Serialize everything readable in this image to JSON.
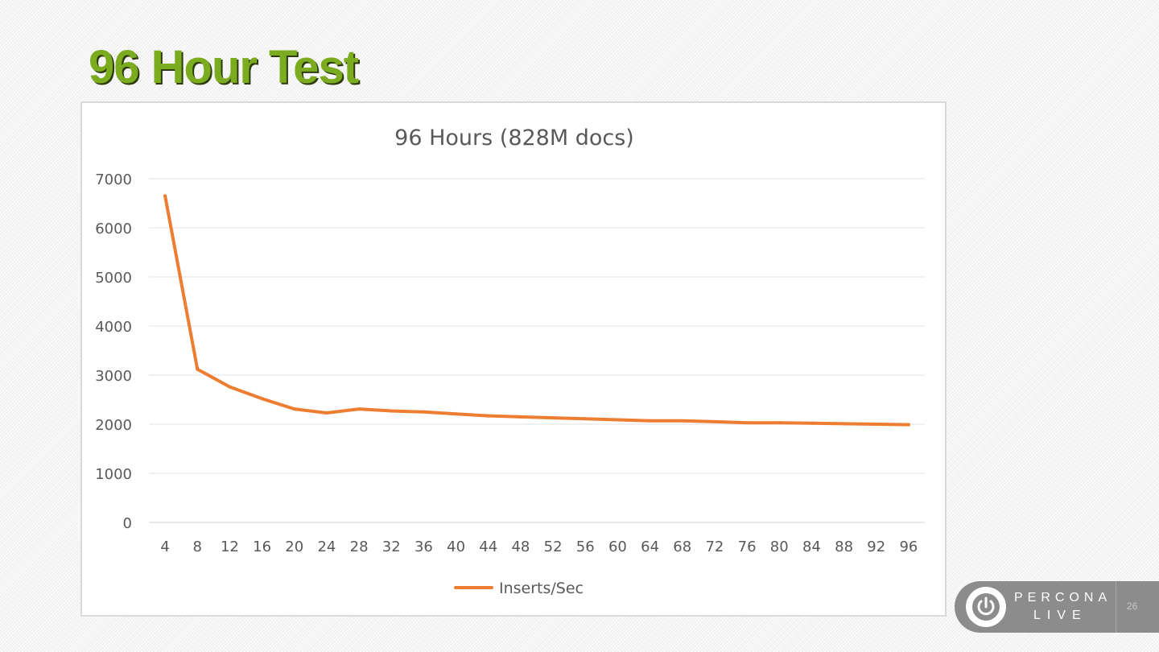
{
  "slide": {
    "title": "96 Hour Test",
    "page_number": "26"
  },
  "branding": {
    "line1": "PERCONA",
    "line2": "LIVE",
    "icon": "power-icon"
  },
  "colors": {
    "title": "#7bab1e",
    "series": "#ed7d31",
    "badge": "#8c8c8c"
  },
  "chart_data": {
    "type": "line",
    "title": "96 Hours (828M docs)",
    "xlabel": "",
    "ylabel": "",
    "categories": [
      "4",
      "8",
      "12",
      "16",
      "20",
      "24",
      "28",
      "32",
      "36",
      "40",
      "44",
      "48",
      "52",
      "56",
      "60",
      "64",
      "68",
      "72",
      "76",
      "80",
      "84",
      "88",
      "92",
      "96"
    ],
    "series": [
      {
        "name": "Inserts/Sec",
        "values": [
          6650,
          3120,
          2760,
          2520,
          2310,
          2230,
          2310,
          2270,
          2250,
          2210,
          2170,
          2150,
          2130,
          2110,
          2090,
          2070,
          2070,
          2050,
          2030,
          2030,
          2020,
          2010,
          2000,
          1990
        ]
      }
    ],
    "ylim": [
      0,
      7000
    ],
    "yticks": [
      0,
      1000,
      2000,
      3000,
      4000,
      5000,
      6000,
      7000
    ],
    "grid": true,
    "legend": "bottom"
  }
}
